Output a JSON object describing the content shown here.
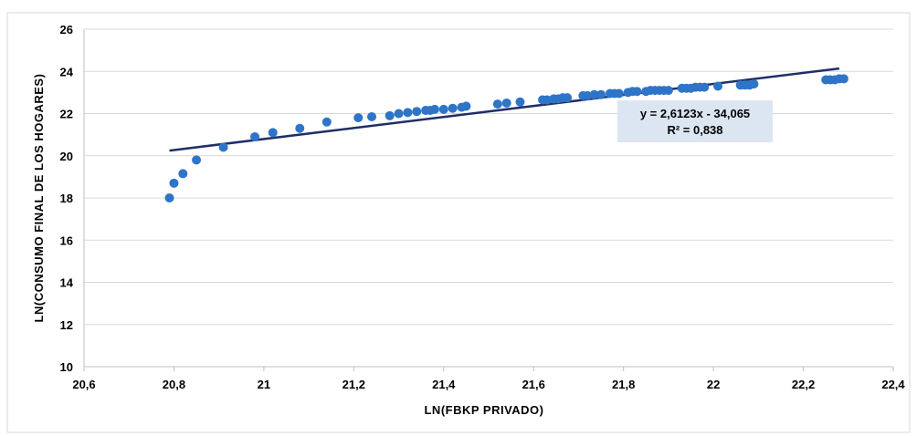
{
  "chart_data": {
    "type": "scatter",
    "xlabel": "LN(FBKP  PRIVADO)",
    "ylabel": "LN(CONSUMO FINAL  DE  LOS HOGARES)",
    "xlim": [
      20.6,
      22.4
    ],
    "ylim": [
      10,
      26
    ],
    "x_ticks": [
      "20,6",
      "20,8",
      "21",
      "21,2",
      "21,4",
      "21,6",
      "21,8",
      "22",
      "22,2",
      "22,4"
    ],
    "x_tick_values": [
      20.6,
      20.8,
      21.0,
      21.2,
      21.4,
      21.6,
      21.8,
      22.0,
      22.2,
      22.4
    ],
    "y_ticks": [
      "10",
      "12",
      "14",
      "16",
      "18",
      "20",
      "22",
      "24",
      "26"
    ],
    "y_tick_values": [
      10,
      12,
      14,
      16,
      18,
      20,
      22,
      24,
      26
    ],
    "grid": "horizontal",
    "point_color": "#2E75C8",
    "trendline_color": "#1F2F66",
    "trendline": {
      "slope": 2.6123,
      "intercept": -34.065,
      "x_range": [
        20.79,
        22.28
      ]
    },
    "equation_label": "y = 2,6123x - 34,065",
    "r2_label": "R² = 0,838",
    "equation_box_color": "#DCE6F2",
    "points": [
      [
        20.79,
        18.0
      ],
      [
        20.8,
        18.7
      ],
      [
        20.82,
        19.15
      ],
      [
        20.85,
        19.8
      ],
      [
        20.91,
        20.4
      ],
      [
        20.98,
        20.9
      ],
      [
        21.02,
        21.1
      ],
      [
        21.08,
        21.3
      ],
      [
        21.14,
        21.6
      ],
      [
        21.21,
        21.8
      ],
      [
        21.24,
        21.85
      ],
      [
        21.28,
        21.9
      ],
      [
        21.3,
        22.0
      ],
      [
        21.32,
        22.05
      ],
      [
        21.34,
        22.1
      ],
      [
        21.36,
        22.15
      ],
      [
        21.37,
        22.15
      ],
      [
        21.38,
        22.2
      ],
      [
        21.4,
        22.2
      ],
      [
        21.42,
        22.25
      ],
      [
        21.44,
        22.3
      ],
      [
        21.45,
        22.35
      ],
      [
        21.52,
        22.45
      ],
      [
        21.54,
        22.5
      ],
      [
        21.57,
        22.55
      ],
      [
        21.62,
        22.65
      ],
      [
        21.63,
        22.65
      ],
      [
        21.645,
        22.7
      ],
      [
        21.655,
        22.7
      ],
      [
        21.665,
        22.75
      ],
      [
        21.675,
        22.75
      ],
      [
        21.71,
        22.85
      ],
      [
        21.72,
        22.85
      ],
      [
        21.735,
        22.9
      ],
      [
        21.75,
        22.9
      ],
      [
        21.77,
        22.95
      ],
      [
        21.78,
        22.95
      ],
      [
        21.79,
        22.95
      ],
      [
        21.81,
        23.0
      ],
      [
        21.82,
        23.05
      ],
      [
        21.83,
        23.05
      ],
      [
        21.85,
        23.05
      ],
      [
        21.86,
        23.1
      ],
      [
        21.87,
        23.1
      ],
      [
        21.88,
        23.1
      ],
      [
        21.89,
        23.1
      ],
      [
        21.9,
        23.1
      ],
      [
        21.93,
        23.2
      ],
      [
        21.94,
        23.2
      ],
      [
        21.95,
        23.2
      ],
      [
        21.96,
        23.25
      ],
      [
        21.97,
        23.25
      ],
      [
        21.98,
        23.25
      ],
      [
        22.01,
        23.3
      ],
      [
        22.06,
        23.35
      ],
      [
        22.07,
        23.35
      ],
      [
        22.08,
        23.35
      ],
      [
        22.09,
        23.4
      ],
      [
        22.25,
        23.6
      ],
      [
        22.26,
        23.6
      ],
      [
        22.27,
        23.6
      ],
      [
        22.28,
        23.65
      ],
      [
        22.29,
        23.65
      ]
    ]
  }
}
